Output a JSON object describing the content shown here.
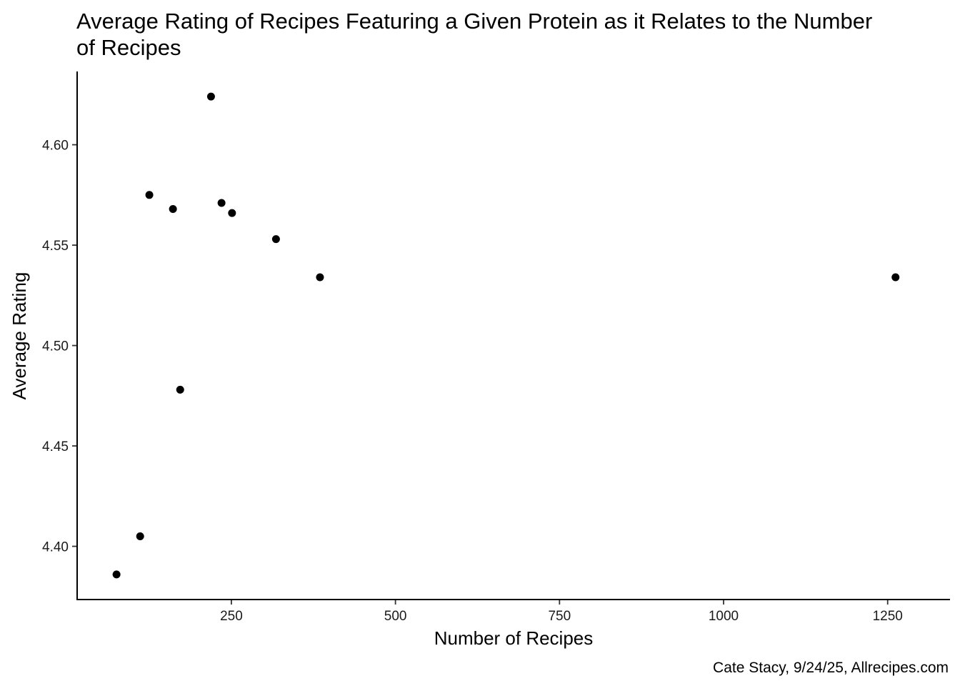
{
  "chart_data": {
    "type": "scatter",
    "title_lines": [
      "Average Rating of Recipes Featuring a Given Protein as it Relates to the Number",
      "of Recipes"
    ],
    "xlabel": "Number of Recipes",
    "ylabel": "Average Rating",
    "caption": "Cate Stacy, 9/24/25, Allrecipes.com",
    "xlim": [
      15,
      1345
    ],
    "ylim": [
      4.3735,
      4.6365
    ],
    "x_ticks": [
      250,
      500,
      750,
      1000,
      1250
    ],
    "x_tick_labels": [
      "250",
      "500",
      "750",
      "1000",
      "1250"
    ],
    "y_ticks": [
      4.4,
      4.45,
      4.5,
      4.55,
      4.6
    ],
    "y_tick_labels": [
      "4.40",
      "4.45",
      "4.50",
      "4.55",
      "4.60"
    ],
    "grid": false,
    "legend": "none",
    "point_color": "#000000",
    "x": [
      75,
      111,
      125,
      161,
      172,
      219,
      235,
      251,
      318,
      385,
      1262
    ],
    "y": [
      4.386,
      4.405,
      4.575,
      4.568,
      4.478,
      4.624,
      4.571,
      4.566,
      4.553,
      4.534,
      4.534
    ]
  }
}
